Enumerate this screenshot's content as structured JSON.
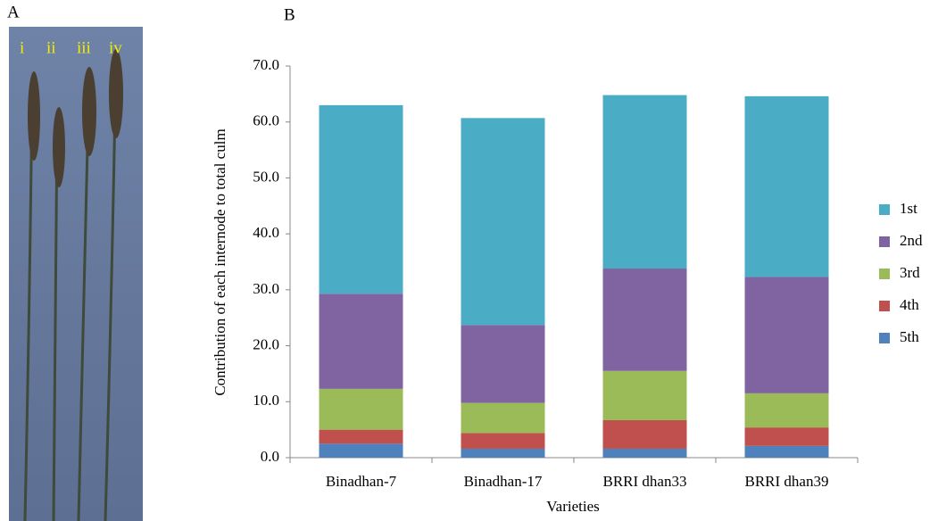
{
  "panel_labels": [
    "A",
    "B"
  ],
  "photo_labels": [
    "i",
    "ii",
    "iii",
    "iv"
  ],
  "chart_data": {
    "type": "stacked_bar",
    "y_label": "Contribution of each internode to total culm",
    "x_label": "Varieties",
    "categories": [
      "Binadhan-7",
      "Binadhan-17",
      "BRRI dhan33",
      "BRRI dhan39"
    ],
    "series": [
      {
        "name": "5th",
        "color": "#4f81bd",
        "values": [
          2.5,
          1.6,
          1.6,
          2.1
        ]
      },
      {
        "name": "4th",
        "color": "#c0504d",
        "values": [
          2.5,
          2.8,
          5.1,
          3.3
        ]
      },
      {
        "name": "3rd",
        "color": "#9bbb59",
        "values": [
          7.3,
          5.4,
          8.8,
          6.1
        ]
      },
      {
        "name": "2nd",
        "color": "#8064a2",
        "values": [
          17.0,
          13.9,
          18.3,
          20.8
        ]
      },
      {
        "name": "1st",
        "color": "#4bacc6",
        "values": [
          33.7,
          37.0,
          31.0,
          32.3
        ]
      }
    ],
    "ylim": [
      0,
      70
    ],
    "yticks": [
      {
        "value": 0,
        "label": "0.0"
      },
      {
        "value": 10,
        "label": "10.0"
      },
      {
        "value": 20,
        "label": "20.0"
      },
      {
        "value": 30,
        "label": "30.0"
      },
      {
        "value": 40,
        "label": "40.0"
      },
      {
        "value": 50,
        "label": "50.0"
      },
      {
        "value": 60,
        "label": "60.0"
      },
      {
        "value": 70,
        "label": "70.0"
      }
    ],
    "legend": "right"
  }
}
